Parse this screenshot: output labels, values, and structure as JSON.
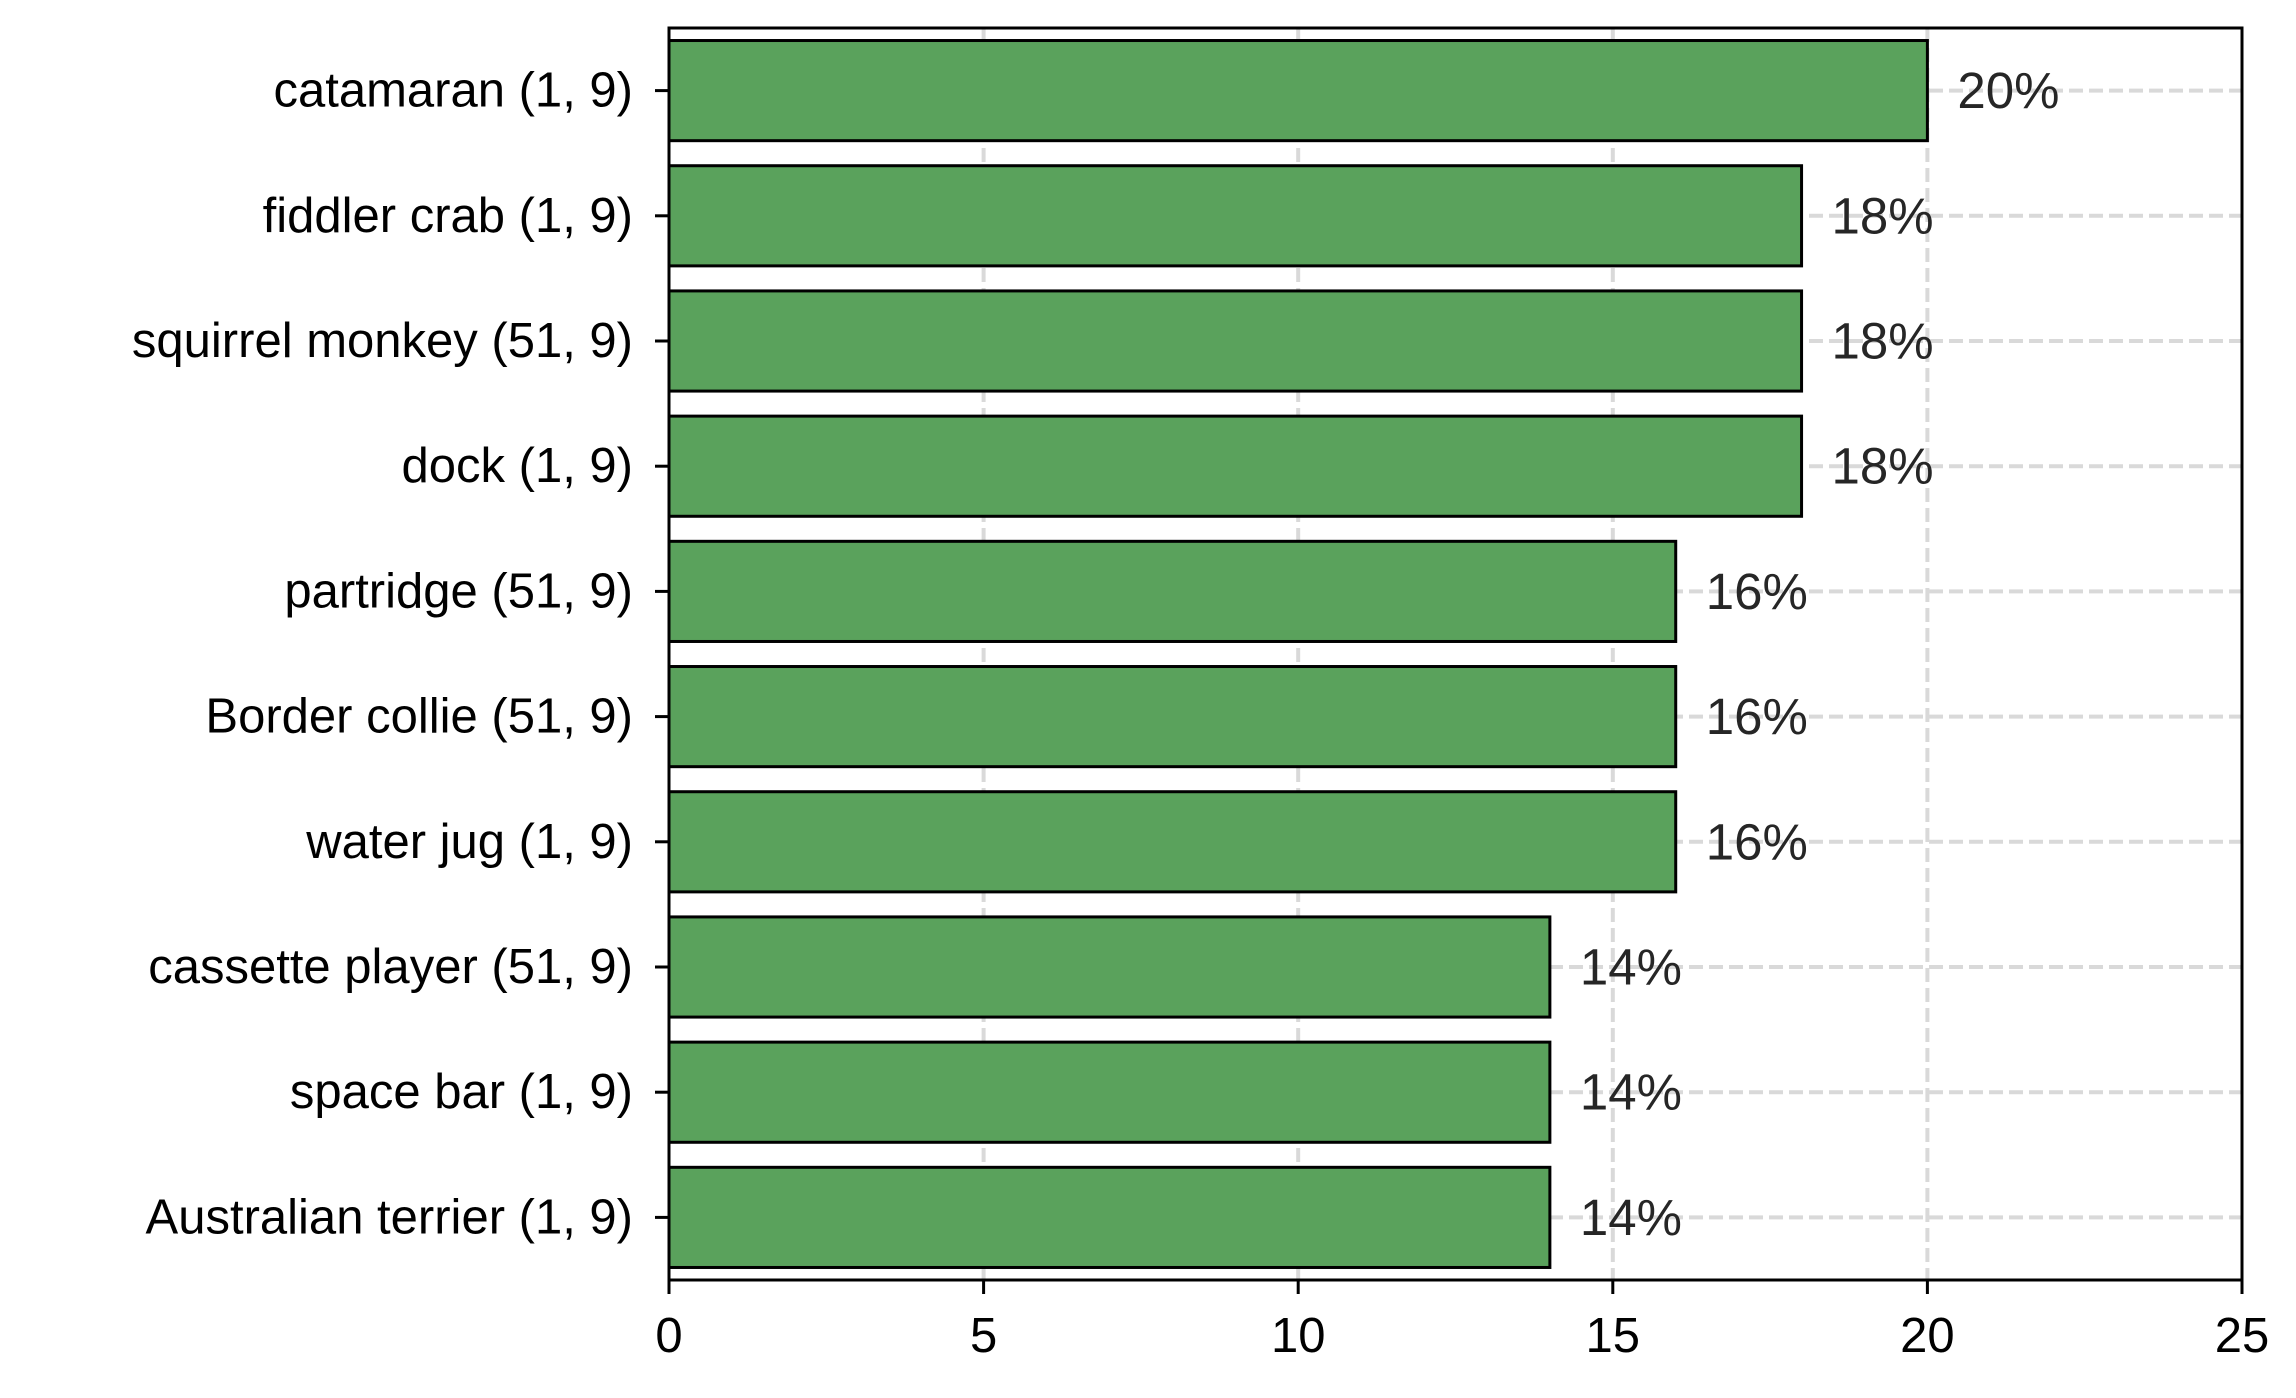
{
  "chart_data": {
    "type": "bar",
    "orientation": "horizontal",
    "title": "",
    "xlabel": "",
    "ylabel": "",
    "categories": [
      "catamaran (1, 9)",
      "fiddler crab (1, 9)",
      "squirrel monkey (51, 9)",
      "dock (1, 9)",
      "partridge (51, 9)",
      "Border collie (51, 9)",
      "water jug (1, 9)",
      "cassette player (51, 9)",
      "space bar (1, 9)",
      "Australian terrier (1, 9)"
    ],
    "values": [
      20,
      18,
      18,
      18,
      16,
      16,
      16,
      14,
      14,
      14
    ],
    "data_labels": [
      "20%",
      "18%",
      "18%",
      "18%",
      "16%",
      "16%",
      "16%",
      "14%",
      "14%",
      "14%"
    ],
    "xlim": [
      0,
      25
    ],
    "xticks": [
      0,
      5,
      10,
      15,
      20,
      25
    ],
    "xtick_labels": [
      "0",
      "5",
      "10",
      "15",
      "20",
      "25"
    ],
    "grid": true,
    "grid_style": "dashed",
    "legend": "none",
    "colors": {
      "bar_fill": "#5aa25c",
      "bar_edge": "#000000",
      "grid": "#d9d9d9",
      "axis": "#000000",
      "data_label": "#262626"
    }
  }
}
